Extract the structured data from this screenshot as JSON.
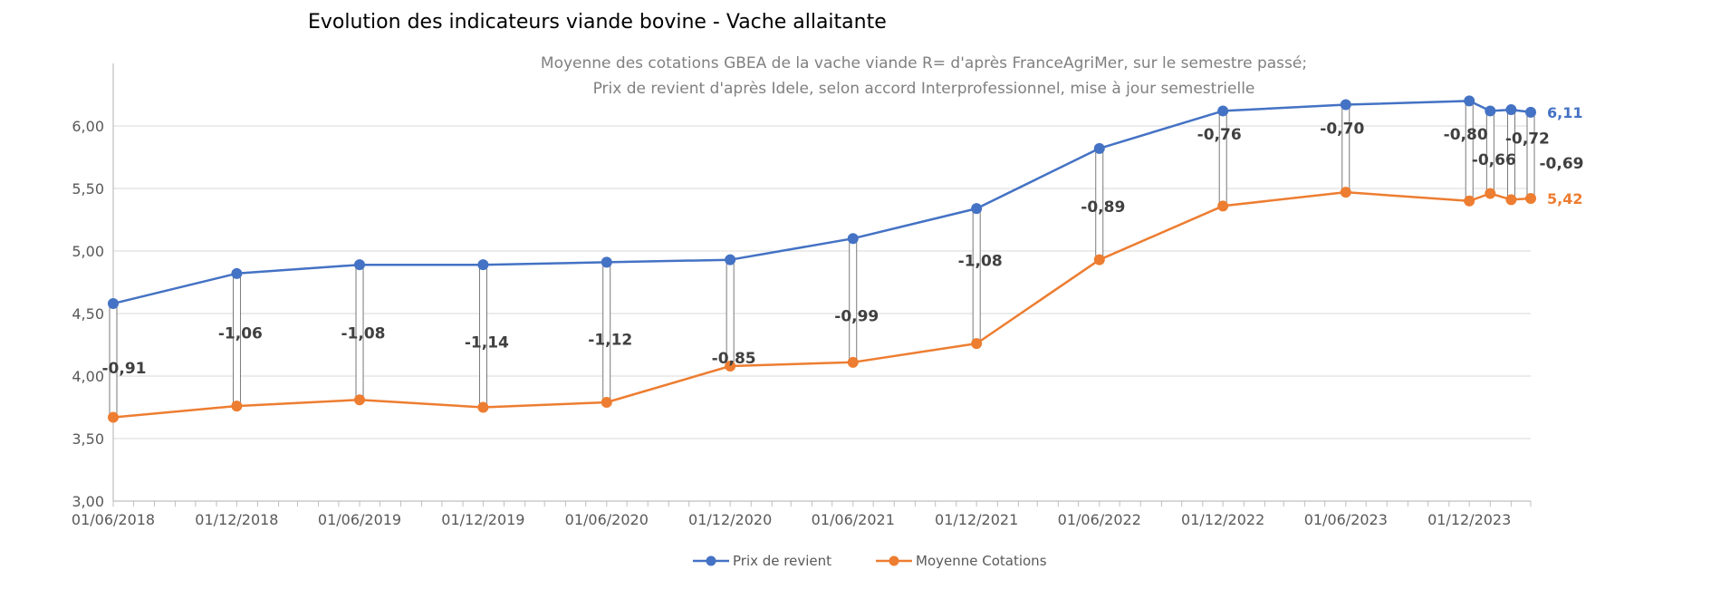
{
  "chart_data": {
    "type": "line",
    "title": "Evolution des indicateurs viande bovine - Vache allaitante",
    "subtitle_lines": [
      "Moyenne des cotations GBEA de la vache viande R= d'après FranceAgriMer, sur le semestre passé;",
      "Prix de revient d'après Idele, selon accord Interprofessionnel, mise à jour semestrielle"
    ],
    "x": [
      "2018-06-01",
      "2018-12-01",
      "2019-06-01",
      "2019-12-01",
      "2020-06-01",
      "2020-12-01",
      "2021-06-01",
      "2021-12-01",
      "2022-06-01",
      "2022-12-01",
      "2023-06-01",
      "2023-12-01",
      "2024-01-01",
      "2024-02-01",
      "2024-03-01"
    ],
    "x_tick_labels": [
      "01/06/2018",
      "01/12/2018",
      "01/06/2019",
      "01/12/2019",
      "01/06/2020",
      "01/12/2020",
      "01/06/2021",
      "01/12/2021",
      "01/06/2022",
      "01/12/2022",
      "01/06/2023",
      "01/12/2023"
    ],
    "xlim": [
      "2018-06-01",
      "2024-03-01"
    ],
    "ylim": [
      3.0,
      6.5
    ],
    "y_ticks": [
      3.0,
      3.5,
      4.0,
      4.5,
      5.0,
      5.5,
      6.0
    ],
    "y_tick_labels": [
      "3,00",
      "3,50",
      "4,00",
      "4,50",
      "5,00",
      "5,50",
      "6,00"
    ],
    "grid": true,
    "legend_position": "bottom",
    "series": [
      {
        "name": "Prix de revient",
        "color": "#4472C4",
        "values": [
          4.58,
          4.82,
          4.89,
          4.89,
          4.91,
          4.93,
          5.1,
          5.34,
          5.82,
          6.12,
          6.17,
          6.2,
          6.12,
          6.13,
          6.11
        ]
      },
      {
        "name": "Moyenne Cotations",
        "color": "#ED7D31",
        "values": [
          3.67,
          3.76,
          3.81,
          3.75,
          3.79,
          4.08,
          4.11,
          4.26,
          4.93,
          5.36,
          5.47,
          5.4,
          5.46,
          5.41,
          5.42
        ]
      }
    ],
    "diff_labels": [
      "-0,91",
      "-1,06",
      "-1,08",
      "-1,14",
      "-1,12",
      "-0,85",
      "-0,99",
      "-1,08",
      "-0,89",
      "-0,76",
      "-0,70",
      "-0,80",
      "-0,66",
      "-0,72",
      "-0,69"
    ],
    "end_labels": {
      "Prix de revient": "6,11",
      "Moyenne Cotations": "5,42"
    }
  }
}
